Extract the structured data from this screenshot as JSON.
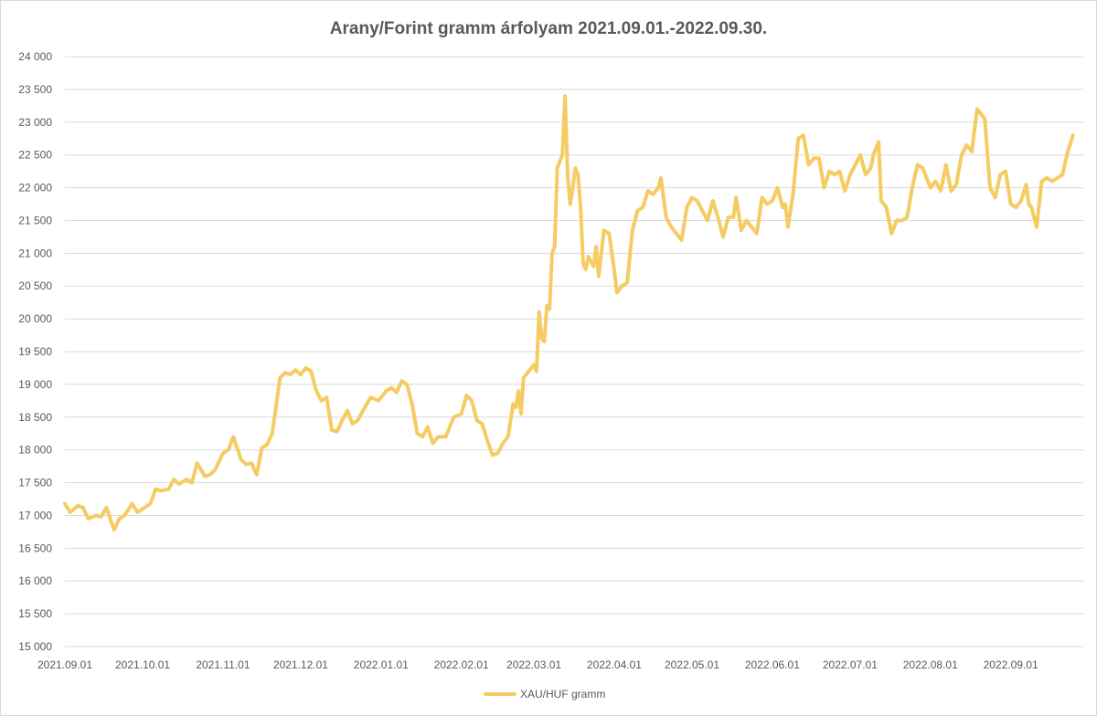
{
  "chart_data": {
    "type": "line",
    "title": "Arany/Forint gramm árfolyam 2021.09.01.-2022.09.30.",
    "xlabel": "",
    "ylabel": "",
    "ylim": [
      15000,
      24000
    ],
    "grid": true,
    "legend_position": "bottom",
    "y_ticks": [
      "15 000",
      "15 500",
      "16 000",
      "16 500",
      "17 000",
      "17 500",
      "18 000",
      "18 500",
      "19 000",
      "19 500",
      "20 000",
      "20 500",
      "21 000",
      "21 500",
      "22 000",
      "22 500",
      "23 000",
      "23 500",
      "24 000"
    ],
    "x_ticks": [
      "2021.09.01",
      "2021.10.01",
      "2021.11.01",
      "2021.12.01",
      "2022.01.01",
      "2022.02.01",
      "2022.03.01",
      "2022.04.01",
      "2022.05.01",
      "2022.06.01",
      "2022.07.01",
      "2022.08.01",
      "2022.09.01"
    ],
    "colors": {
      "series": "#f5cc63",
      "grid": "#d9d9d9",
      "text": "#595959"
    },
    "series": [
      {
        "name": "XAU/HUF gramm",
        "points": [
          [
            "2021.09.01",
            17180
          ],
          [
            "2021.09.03",
            17050
          ],
          [
            "2021.09.06",
            17150
          ],
          [
            "2021.09.08",
            17120
          ],
          [
            "2021.09.10",
            16950
          ],
          [
            "2021.09.13",
            17000
          ],
          [
            "2021.09.15",
            16980
          ],
          [
            "2021.09.17",
            17120
          ],
          [
            "2021.09.20",
            16780
          ],
          [
            "2021.09.22",
            16950
          ],
          [
            "2021.09.24",
            17000
          ],
          [
            "2021.09.27",
            17180
          ],
          [
            "2021.09.29",
            17050
          ],
          [
            "2021.10.01",
            17100
          ],
          [
            "2021.10.04",
            17180
          ],
          [
            "2021.10.06",
            17400
          ],
          [
            "2021.10.08",
            17380
          ],
          [
            "2021.10.11",
            17400
          ],
          [
            "2021.10.13",
            17550
          ],
          [
            "2021.10.15",
            17480
          ],
          [
            "2021.10.18",
            17550
          ],
          [
            "2021.10.20",
            17500
          ],
          [
            "2021.10.22",
            17800
          ],
          [
            "2021.10.25",
            17600
          ],
          [
            "2021.10.27",
            17620
          ],
          [
            "2021.10.29",
            17700
          ],
          [
            "2021.11.01",
            17950
          ],
          [
            "2021.11.03",
            18000
          ],
          [
            "2021.11.05",
            18200
          ],
          [
            "2021.11.08",
            17850
          ],
          [
            "2021.11.10",
            17780
          ],
          [
            "2021.11.12",
            17800
          ],
          [
            "2021.11.14",
            17620
          ],
          [
            "2021.11.16",
            18030
          ],
          [
            "2021.11.18",
            18080
          ],
          [
            "2021.11.20",
            18250
          ],
          [
            "2021.11.23",
            19100
          ],
          [
            "2021.11.25",
            19180
          ],
          [
            "2021.11.27",
            19150
          ],
          [
            "2021.11.29",
            19220
          ],
          [
            "2021.12.01",
            19150
          ],
          [
            "2021.12.03",
            19250
          ],
          [
            "2021.12.05",
            19200
          ],
          [
            "2021.12.07",
            18900
          ],
          [
            "2021.12.09",
            18750
          ],
          [
            "2021.12.11",
            18800
          ],
          [
            "2021.12.13",
            18300
          ],
          [
            "2021.12.15",
            18280
          ],
          [
            "2021.12.17",
            18450
          ],
          [
            "2021.12.19",
            18600
          ],
          [
            "2021.12.21",
            18400
          ],
          [
            "2021.12.23",
            18450
          ],
          [
            "2021.12.25",
            18600
          ],
          [
            "2021.12.28",
            18800
          ],
          [
            "2021.12.31",
            18750
          ],
          [
            "2022.01.03",
            18900
          ],
          [
            "2022.01.05",
            18950
          ],
          [
            "2022.01.07",
            18880
          ],
          [
            "2022.01.09",
            19050
          ],
          [
            "2022.01.11",
            19000
          ],
          [
            "2022.01.13",
            18700
          ],
          [
            "2022.01.15",
            18250
          ],
          [
            "2022.01.17",
            18200
          ],
          [
            "2022.01.19",
            18350
          ],
          [
            "2022.01.21",
            18100
          ],
          [
            "2022.01.23",
            18200
          ],
          [
            "2022.01.26",
            18200
          ],
          [
            "2022.01.29",
            18500
          ],
          [
            "2022.02.01",
            18550
          ],
          [
            "2022.02.03",
            18830
          ],
          [
            "2022.02.05",
            18750
          ],
          [
            "2022.02.07",
            18450
          ],
          [
            "2022.02.09",
            18400
          ],
          [
            "2022.02.11",
            18150
          ],
          [
            "2022.02.13",
            17920
          ],
          [
            "2022.02.15",
            17950
          ],
          [
            "2022.02.17",
            18100
          ],
          [
            "2022.02.19",
            18200
          ],
          [
            "2022.02.21",
            18700
          ],
          [
            "2022.02.22",
            18650
          ],
          [
            "2022.02.23",
            18900
          ],
          [
            "2022.02.24",
            18550
          ],
          [
            "2022.02.25",
            19100
          ],
          [
            "2022.02.27",
            19200
          ],
          [
            "2022.03.01",
            19300
          ],
          [
            "2022.03.02",
            19200
          ],
          [
            "2022.03.03",
            20100
          ],
          [
            "2022.03.04",
            19700
          ],
          [
            "2022.03.05",
            19650
          ],
          [
            "2022.03.06",
            20200
          ],
          [
            "2022.03.07",
            20150
          ],
          [
            "2022.03.08",
            21000
          ],
          [
            "2022.03.09",
            21100
          ],
          [
            "2022.03.10",
            22300
          ],
          [
            "2022.03.11",
            22400
          ],
          [
            "2022.03.12",
            22500
          ],
          [
            "2022.03.13",
            23400
          ],
          [
            "2022.03.14",
            22200
          ],
          [
            "2022.03.15",
            21750
          ],
          [
            "2022.03.16",
            22000
          ],
          [
            "2022.03.17",
            22300
          ],
          [
            "2022.03.18",
            22200
          ],
          [
            "2022.03.19",
            21700
          ],
          [
            "2022.03.20",
            20850
          ],
          [
            "2022.03.21",
            20750
          ],
          [
            "2022.03.22",
            20950
          ],
          [
            "2022.03.24",
            20800
          ],
          [
            "2022.03.25",
            21100
          ],
          [
            "2022.03.26",
            20650
          ],
          [
            "2022.03.28",
            21350
          ],
          [
            "2022.03.30",
            21300
          ],
          [
            "2022.04.01",
            20750
          ],
          [
            "2022.04.02",
            20400
          ],
          [
            "2022.04.04",
            20500
          ],
          [
            "2022.04.06",
            20550
          ],
          [
            "2022.04.08",
            21350
          ],
          [
            "2022.04.10",
            21650
          ],
          [
            "2022.04.12",
            21700
          ],
          [
            "2022.04.14",
            21950
          ],
          [
            "2022.04.16",
            21900
          ],
          [
            "2022.04.18",
            22000
          ],
          [
            "2022.04.19",
            22150
          ],
          [
            "2022.04.21",
            21550
          ],
          [
            "2022.04.23",
            21400
          ],
          [
            "2022.04.25",
            21300
          ],
          [
            "2022.04.27",
            21200
          ],
          [
            "2022.04.29",
            21700
          ],
          [
            "2022.05.01",
            21850
          ],
          [
            "2022.05.03",
            21800
          ],
          [
            "2022.05.05",
            21650
          ],
          [
            "2022.05.07",
            21500
          ],
          [
            "2022.05.09",
            21800
          ],
          [
            "2022.05.11",
            21550
          ],
          [
            "2022.05.13",
            21250
          ],
          [
            "2022.05.15",
            21550
          ],
          [
            "2022.05.17",
            21550
          ],
          [
            "2022.05.18",
            21850
          ],
          [
            "2022.05.20",
            21350
          ],
          [
            "2022.05.22",
            21500
          ],
          [
            "2022.05.24",
            21400
          ],
          [
            "2022.05.26",
            21300
          ],
          [
            "2022.05.28",
            21850
          ],
          [
            "2022.05.30",
            21750
          ],
          [
            "2022.06.01",
            21800
          ],
          [
            "2022.06.03",
            22000
          ],
          [
            "2022.06.05",
            21700
          ],
          [
            "2022.06.06",
            21750
          ],
          [
            "2022.06.07",
            21400
          ],
          [
            "2022.06.09",
            21900
          ],
          [
            "2022.06.11",
            22750
          ],
          [
            "2022.06.13",
            22800
          ],
          [
            "2022.06.15",
            22350
          ],
          [
            "2022.06.17",
            22450
          ],
          [
            "2022.06.19",
            22450
          ],
          [
            "2022.06.21",
            22000
          ],
          [
            "2022.06.23",
            22250
          ],
          [
            "2022.06.25",
            22200
          ],
          [
            "2022.06.27",
            22250
          ],
          [
            "2022.06.29",
            21950
          ],
          [
            "2022.07.01",
            22200
          ],
          [
            "2022.07.03",
            22350
          ],
          [
            "2022.07.05",
            22500
          ],
          [
            "2022.07.07",
            22200
          ],
          [
            "2022.07.09",
            22300
          ],
          [
            "2022.07.10",
            22500
          ],
          [
            "2022.07.12",
            22700
          ],
          [
            "2022.07.13",
            21800
          ],
          [
            "2022.07.15",
            21700
          ],
          [
            "2022.07.17",
            21300
          ],
          [
            "2022.07.19",
            21500
          ],
          [
            "2022.07.21",
            21500
          ],
          [
            "2022.07.23",
            21550
          ],
          [
            "2022.07.25",
            22000
          ],
          [
            "2022.07.27",
            22350
          ],
          [
            "2022.07.29",
            22300
          ],
          [
            "2022.08.01",
            22000
          ],
          [
            "2022.08.03",
            22100
          ],
          [
            "2022.08.05",
            21950
          ],
          [
            "2022.08.07",
            22350
          ],
          [
            "2022.08.09",
            21950
          ],
          [
            "2022.08.11",
            22050
          ],
          [
            "2022.08.13",
            22500
          ],
          [
            "2022.08.15",
            22650
          ],
          [
            "2022.08.17",
            22550
          ],
          [
            "2022.08.19",
            23200
          ],
          [
            "2022.08.21",
            23100
          ],
          [
            "2022.08.22",
            23050
          ],
          [
            "2022.08.24",
            22000
          ],
          [
            "2022.08.26",
            21850
          ],
          [
            "2022.08.28",
            22200
          ],
          [
            "2022.08.30",
            22250
          ],
          [
            "2022.09.01",
            21750
          ],
          [
            "2022.09.03",
            21700
          ],
          [
            "2022.09.05",
            21800
          ],
          [
            "2022.09.07",
            22050
          ],
          [
            "2022.09.08",
            21750
          ],
          [
            "2022.09.09",
            21700
          ],
          [
            "2022.09.11",
            21400
          ],
          [
            "2022.09.13",
            22100
          ],
          [
            "2022.09.15",
            22150
          ],
          [
            "2022.09.17",
            22100
          ],
          [
            "2022.09.19",
            22150
          ],
          [
            "2022.09.21",
            22200
          ],
          [
            "2022.09.23",
            22550
          ],
          [
            "2022.09.25",
            22800
          ]
        ]
      }
    ]
  }
}
